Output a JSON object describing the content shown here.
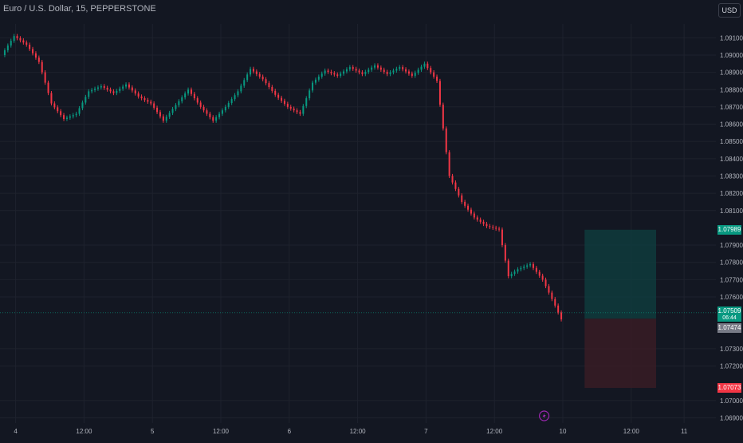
{
  "header": {
    "title": "Euro / U.S. Dollar, 15, PEPPERSTONE",
    "currency": "USD"
  },
  "colors": {
    "background": "#131722",
    "grid": "#1e222d",
    "axis_text": "#b2b5be",
    "up": "#089981",
    "down": "#f23645",
    "profit_zone": "#0f3d3e",
    "loss_zone": "#3b1d26"
  },
  "price_labels": {
    "target": "1.07989",
    "current": "1.07509",
    "timer": "06:44",
    "entry": "1.07474",
    "stop": "1.07073"
  },
  "event_icon": "lightning-icon",
  "chart_data": {
    "type": "candlestick",
    "title": "Euro / U.S. Dollar, 15, PEPPERSTONE",
    "y_ticks": [
      "1.09100",
      "1.09000",
      "1.08900",
      "1.08800",
      "1.08700",
      "1.08600",
      "1.08500",
      "1.08400",
      "1.08300",
      "1.08200",
      "1.08100",
      "1.07900",
      "1.07800",
      "1.07700",
      "1.07600",
      "1.07300",
      "1.07200",
      "1.07000",
      "1.06900"
    ],
    "x_ticks": [
      "4",
      "12:00",
      "5",
      "12:00",
      "6",
      "12:00",
      "7",
      "12:00",
      "10",
      "12:00",
      "11"
    ],
    "ylim": [
      1.0687,
      1.0918
    ],
    "series": [
      {
        "x": 0,
        "y": 1.09
      },
      {
        "x": 4,
        "y": 1.0911
      },
      {
        "x": 8,
        "y": 1.0906
      },
      {
        "x": 12,
        "y": 1.0896
      },
      {
        "x": 16,
        "y": 1.0872
      },
      {
        "x": 20,
        "y": 1.0863
      },
      {
        "x": 24,
        "y": 1.0866
      },
      {
        "x": 28,
        "y": 1.0879
      },
      {
        "x": 32,
        "y": 1.0882
      },
      {
        "x": 36,
        "y": 1.0878
      },
      {
        "x": 40,
        "y": 1.0883
      },
      {
        "x": 44,
        "y": 1.0876
      },
      {
        "x": 48,
        "y": 1.0872
      },
      {
        "x": 52,
        "y": 1.0862
      },
      {
        "x": 56,
        "y": 1.0871
      },
      {
        "x": 60,
        "y": 1.088
      },
      {
        "x": 64,
        "y": 1.087
      },
      {
        "x": 68,
        "y": 1.0862
      },
      {
        "x": 72,
        "y": 1.087
      },
      {
        "x": 76,
        "y": 1.0879
      },
      {
        "x": 80,
        "y": 1.0892
      },
      {
        "x": 84,
        "y": 1.0886
      },
      {
        "x": 88,
        "y": 1.0877
      },
      {
        "x": 92,
        "y": 1.087
      },
      {
        "x": 96,
        "y": 1.0866
      },
      {
        "x": 100,
        "y": 1.0884
      },
      {
        "x": 104,
        "y": 1.0891
      },
      {
        "x": 108,
        "y": 1.0888
      },
      {
        "x": 112,
        "y": 1.0893
      },
      {
        "x": 116,
        "y": 1.0889
      },
      {
        "x": 120,
        "y": 1.0894
      },
      {
        "x": 124,
        "y": 1.0889
      },
      {
        "x": 128,
        "y": 1.0893
      },
      {
        "x": 132,
        "y": 1.0888
      },
      {
        "x": 136,
        "y": 1.0895
      },
      {
        "x": 140,
        "y": 1.0885
      },
      {
        "x": 144,
        "y": 1.083
      },
      {
        "x": 148,
        "y": 1.0815
      },
      {
        "x": 152,
        "y": 1.0806
      },
      {
        "x": 156,
        "y": 1.0801
      },
      {
        "x": 160,
        "y": 1.0799
      },
      {
        "x": 163,
        "y": 1.0772
      },
      {
        "x": 166,
        "y": 1.0776
      },
      {
        "x": 170,
        "y": 1.0779
      },
      {
        "x": 174,
        "y": 1.077
      },
      {
        "x": 178,
        "y": 1.0755
      },
      {
        "x": 180,
        "y": 1.0747
      }
    ],
    "position": {
      "target": 1.07989,
      "entry": 1.07474,
      "stop": 1.07073
    },
    "grid": true
  }
}
